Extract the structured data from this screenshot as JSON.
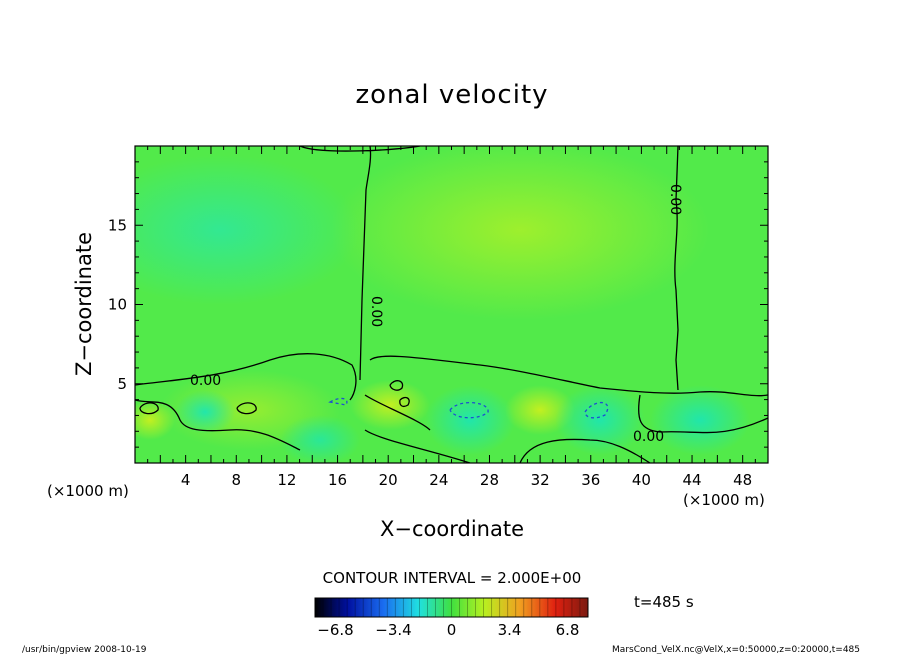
{
  "chart_data": {
    "type": "heatmap",
    "title": "zonal velocity",
    "xlabel": "X−coordinate",
    "ylabel": "Z−coordinate",
    "x_unit": "(×1000 m)",
    "y_unit": "(×1000 m)",
    "x_ticks": [
      4,
      8,
      12,
      16,
      20,
      24,
      28,
      32,
      36,
      40,
      44,
      48
    ],
    "y_ticks": [
      5,
      10,
      15
    ],
    "xlim": [
      0,
      50
    ],
    "ylim": [
      0,
      20
    ],
    "contour_interval_text": "CONTOUR INTERVAL = 2.000E+00",
    "contour_labels": [
      "0.00",
      "0.00",
      "0.00",
      "0.00"
    ],
    "colorbar": {
      "range": [
        -8,
        8
      ],
      "tick_labels": [
        "−6.8",
        "−3.4",
        "0",
        "3.4",
        "6.8"
      ],
      "tick_values": [
        -6.8,
        -3.4,
        0,
        3.4,
        6.8
      ]
    },
    "time_label": "t=485 s",
    "program_info": "/usr/bin/gpview   2008-10-19",
    "file_info": "MarsCond_VelX.nc@VelX,x=0:50000,z=0:20000,t=485",
    "field_samples": [
      {
        "x": 4,
        "z": 15,
        "u": -1.2
      },
      {
        "x": 30,
        "z": 15,
        "u": 1.3
      },
      {
        "x": 14,
        "z": 6,
        "u": 0.4
      },
      {
        "x": 20,
        "z": 2,
        "u": 0.8
      },
      {
        "x": 27,
        "z": 2,
        "u": -1.0
      },
      {
        "x": 36,
        "z": 2,
        "u": -1.0
      },
      {
        "x": 47,
        "z": 2,
        "u": -0.8
      }
    ]
  }
}
